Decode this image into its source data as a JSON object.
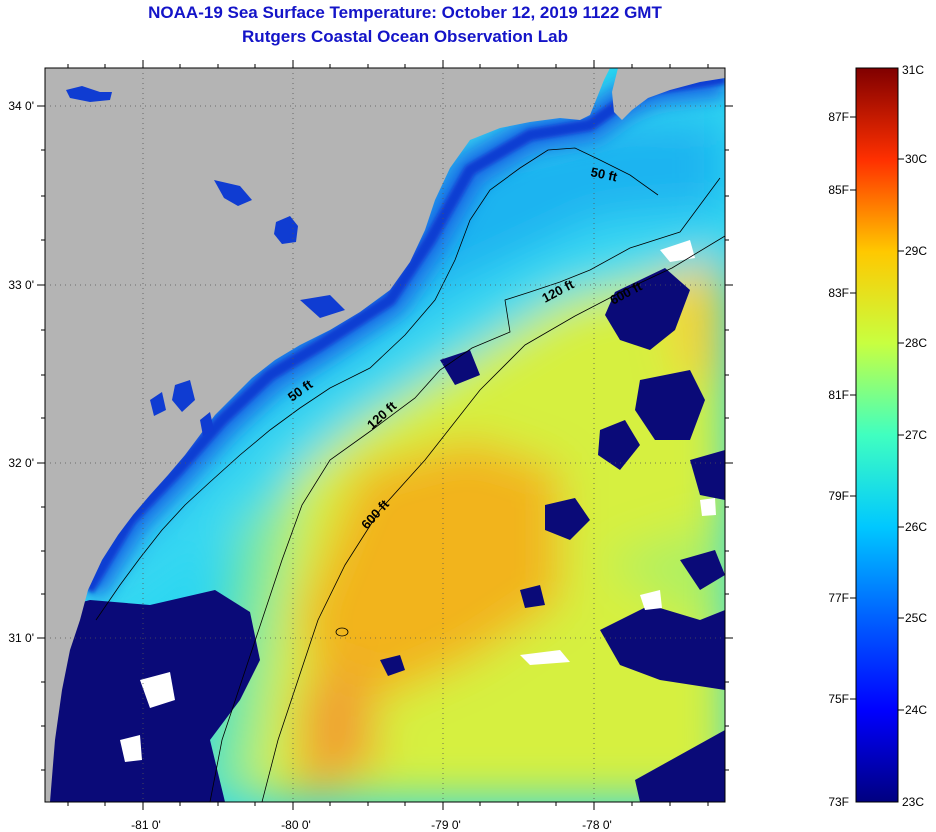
{
  "header": {
    "title": "NOAA-19 Sea Surface Temperature:  October 12, 2019 1122 GMT",
    "subtitle": "Rutgers Coastal Ocean Observation Lab"
  },
  "map": {
    "lat_labels": [
      "34 0'",
      "33 0'",
      "32 0'",
      "31 0'"
    ],
    "lon_labels": [
      "-81 0'",
      "-80 0'",
      "-79 0'",
      "-78 0'"
    ],
    "contour_labels": [
      "50 ft",
      "120 ft",
      "600 ft",
      "50 ft",
      "120 ft",
      "600 ft"
    ],
    "colors": {
      "land": "#b4b4b4",
      "cloud": "#0a0a78",
      "contour": "#000000"
    }
  },
  "colorbar": {
    "fahrenheit_labels": [
      "87F",
      "85F",
      "83F",
      "81F",
      "79F",
      "77F",
      "75F",
      "73F"
    ],
    "celsius_labels": [
      "31C",
      "30C",
      "29C",
      "28C",
      "27C",
      "26C",
      "25C",
      "24C",
      "23C"
    ],
    "range_celsius": [
      23,
      31
    ],
    "scale_colors": [
      "#000080",
      "#0000ff",
      "#0080ff",
      "#00ffff",
      "#80ff80",
      "#ffff00",
      "#ff8000",
      "#ff0000",
      "#800000"
    ]
  }
}
